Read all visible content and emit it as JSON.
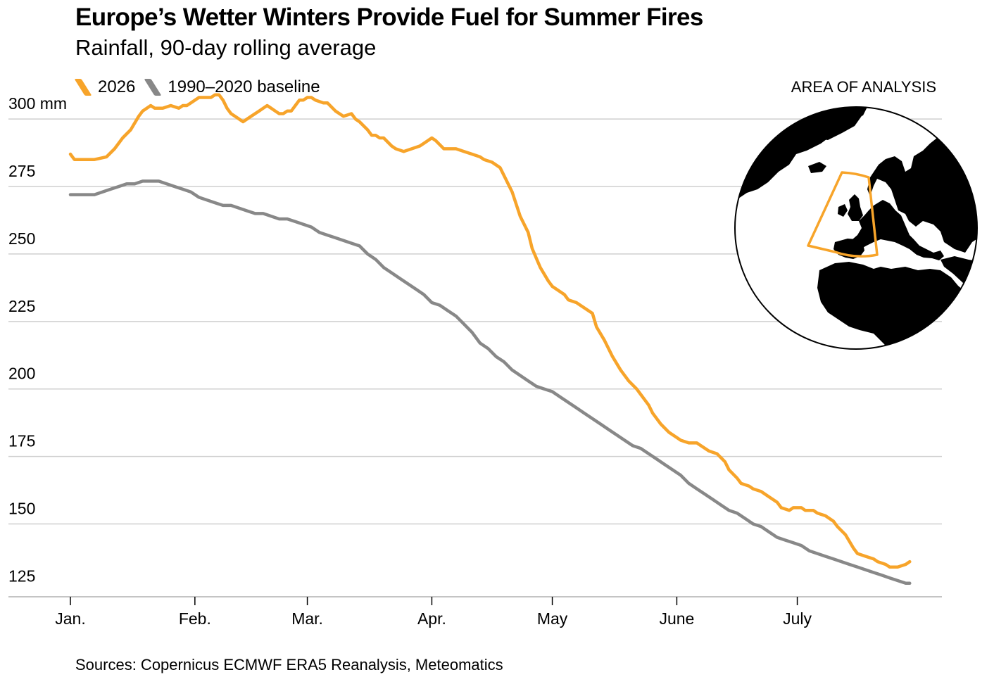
{
  "title": "Europe’s Wetter Winters Provide Fuel for Summer Fires",
  "subtitle": "Rainfall, 90-day rolling average",
  "inset_title": "AREA OF ANALYSIS",
  "source": "Sources: Copernicus ECMWF ERA5 Reanalysis, Meteomatics",
  "colors": {
    "series_2026": "#F7A42A",
    "baseline": "#888888",
    "grid": "#cfcfcf",
    "globe_land": "#000000",
    "area_outline": "#F7A42A"
  },
  "chart_data": {
    "type": "line",
    "title": "Europe’s Wetter Winters Provide Fuel for Summer Fires",
    "subtitle": "Rainfall, 90-day rolling average",
    "xlabel": "",
    "ylabel": "",
    "x_unit": "day of year",
    "xlim": [
      1,
      211
    ],
    "ylim": [
      123,
      305
    ],
    "y_ticks": [
      125,
      150,
      175,
      200,
      225,
      250,
      275,
      300
    ],
    "y_tick_labels": [
      "125",
      "150",
      "175",
      "200",
      "225",
      "250",
      "275",
      "300 mm"
    ],
    "x_ticks": [
      1,
      32,
      60,
      91,
      121,
      152,
      182
    ],
    "x_tick_labels": [
      "Jan.",
      "Feb.",
      "Mar.",
      "Apr.",
      "May",
      "June",
      "July"
    ],
    "grid": true,
    "legend_position": "top-left",
    "series": [
      {
        "name": "2026",
        "color": "#F7A42A",
        "x": [
          1,
          2,
          4,
          5,
          7,
          10,
          12,
          14,
          16,
          18,
          19,
          21,
          22,
          24,
          26,
          28,
          29,
          30,
          31,
          33,
          35,
          36,
          37,
          38,
          39,
          40,
          41,
          42,
          44,
          46,
          48,
          49,
          50,
          51,
          52,
          53,
          54,
          55,
          56,
          57,
          58,
          59,
          60,
          61,
          62,
          64,
          65,
          67,
          69,
          71,
          72,
          73,
          75,
          76,
          77,
          78,
          79,
          81,
          82,
          84,
          86,
          88,
          89,
          90,
          91,
          92,
          94,
          95,
          97,
          99,
          101,
          103,
          104,
          106,
          108,
          110,
          111,
          113,
          115,
          116,
          118,
          120,
          121,
          124,
          125,
          127,
          129,
          131,
          132,
          134,
          136,
          138,
          140,
          142,
          143,
          145,
          146,
          148,
          150,
          152,
          153,
          155,
          157,
          158,
          160,
          162,
          164,
          165,
          167,
          168,
          170,
          171,
          173,
          175,
          177,
          178,
          180,
          181,
          183,
          184,
          186,
          187,
          189,
          191,
          192,
          194,
          196,
          197,
          199,
          201,
          202,
          204,
          205,
          207,
          209,
          210
        ],
        "values": [
          287,
          285,
          285,
          285,
          285,
          286,
          289,
          293,
          296,
          301,
          303,
          305,
          304,
          304,
          305,
          304,
          305,
          305,
          306,
          308,
          308,
          308,
          309,
          309,
          307,
          304,
          302,
          301,
          299,
          301,
          303,
          304,
          305,
          304,
          303,
          302,
          302,
          303,
          303,
          305,
          307,
          307,
          308,
          308,
          307,
          306,
          306,
          303,
          301,
          302,
          300,
          299,
          296,
          294,
          294,
          293,
          293,
          290,
          289,
          288,
          289,
          290,
          291,
          292,
          293,
          292,
          289,
          289,
          289,
          288,
          287,
          286,
          285,
          284,
          282,
          276,
          273,
          264,
          258,
          252,
          245,
          240,
          238,
          235,
          233,
          232,
          230,
          228,
          223,
          218,
          212,
          207,
          203,
          200,
          198,
          194,
          191,
          187,
          184,
          182,
          181,
          180,
          180,
          179,
          177,
          176,
          173,
          170,
          167,
          165,
          164,
          163,
          162,
          160,
          158,
          156,
          155,
          156,
          156,
          155,
          155,
          154,
          153,
          151,
          149,
          146,
          141,
          139,
          138,
          137,
          136,
          135,
          134,
          134,
          135,
          136
        ]
      },
      {
        "name": "1990–2020 baseline",
        "color": "#888888",
        "x": [
          1,
          3,
          5,
          7,
          9,
          11,
          13,
          15,
          17,
          19,
          21,
          23,
          25,
          27,
          29,
          31,
          33,
          35,
          37,
          39,
          41,
          43,
          45,
          47,
          49,
          51,
          53,
          55,
          57,
          59,
          61,
          63,
          65,
          67,
          69,
          71,
          73,
          75,
          77,
          79,
          81,
          83,
          85,
          87,
          89,
          91,
          93,
          95,
          97,
          99,
          101,
          103,
          105,
          107,
          109,
          111,
          113,
          115,
          117,
          119,
          121,
          123,
          125,
          127,
          129,
          131,
          133,
          135,
          137,
          139,
          141,
          143,
          145,
          147,
          149,
          151,
          153,
          155,
          157,
          159,
          161,
          163,
          165,
          167,
          169,
          171,
          173,
          175,
          177,
          179,
          181,
          183,
          185,
          187,
          189,
          191,
          193,
          195,
          197,
          199,
          201,
          203,
          205,
          207,
          209,
          210
        ],
        "values": [
          272,
          272,
          272,
          272,
          273,
          274,
          275,
          276,
          276,
          277,
          277,
          277,
          276,
          275,
          274,
          273,
          271,
          270,
          269,
          268,
          268,
          267,
          266,
          265,
          265,
          264,
          263,
          263,
          262,
          261,
          260,
          258,
          257,
          256,
          255,
          254,
          253,
          250,
          248,
          245,
          243,
          241,
          239,
          237,
          235,
          232,
          231,
          229,
          227,
          224,
          221,
          217,
          215,
          212,
          210,
          207,
          205,
          203,
          201,
          200,
          199,
          197,
          195,
          193,
          191,
          189,
          187,
          185,
          183,
          181,
          179,
          178,
          176,
          174,
          172,
          170,
          168,
          165,
          163,
          161,
          159,
          157,
          155,
          154,
          152,
          150,
          149,
          147,
          145,
          144,
          143,
          142,
          140,
          139,
          138,
          137,
          136,
          135,
          134,
          133,
          132,
          131,
          130,
          129,
          128,
          128
        ]
      }
    ]
  }
}
